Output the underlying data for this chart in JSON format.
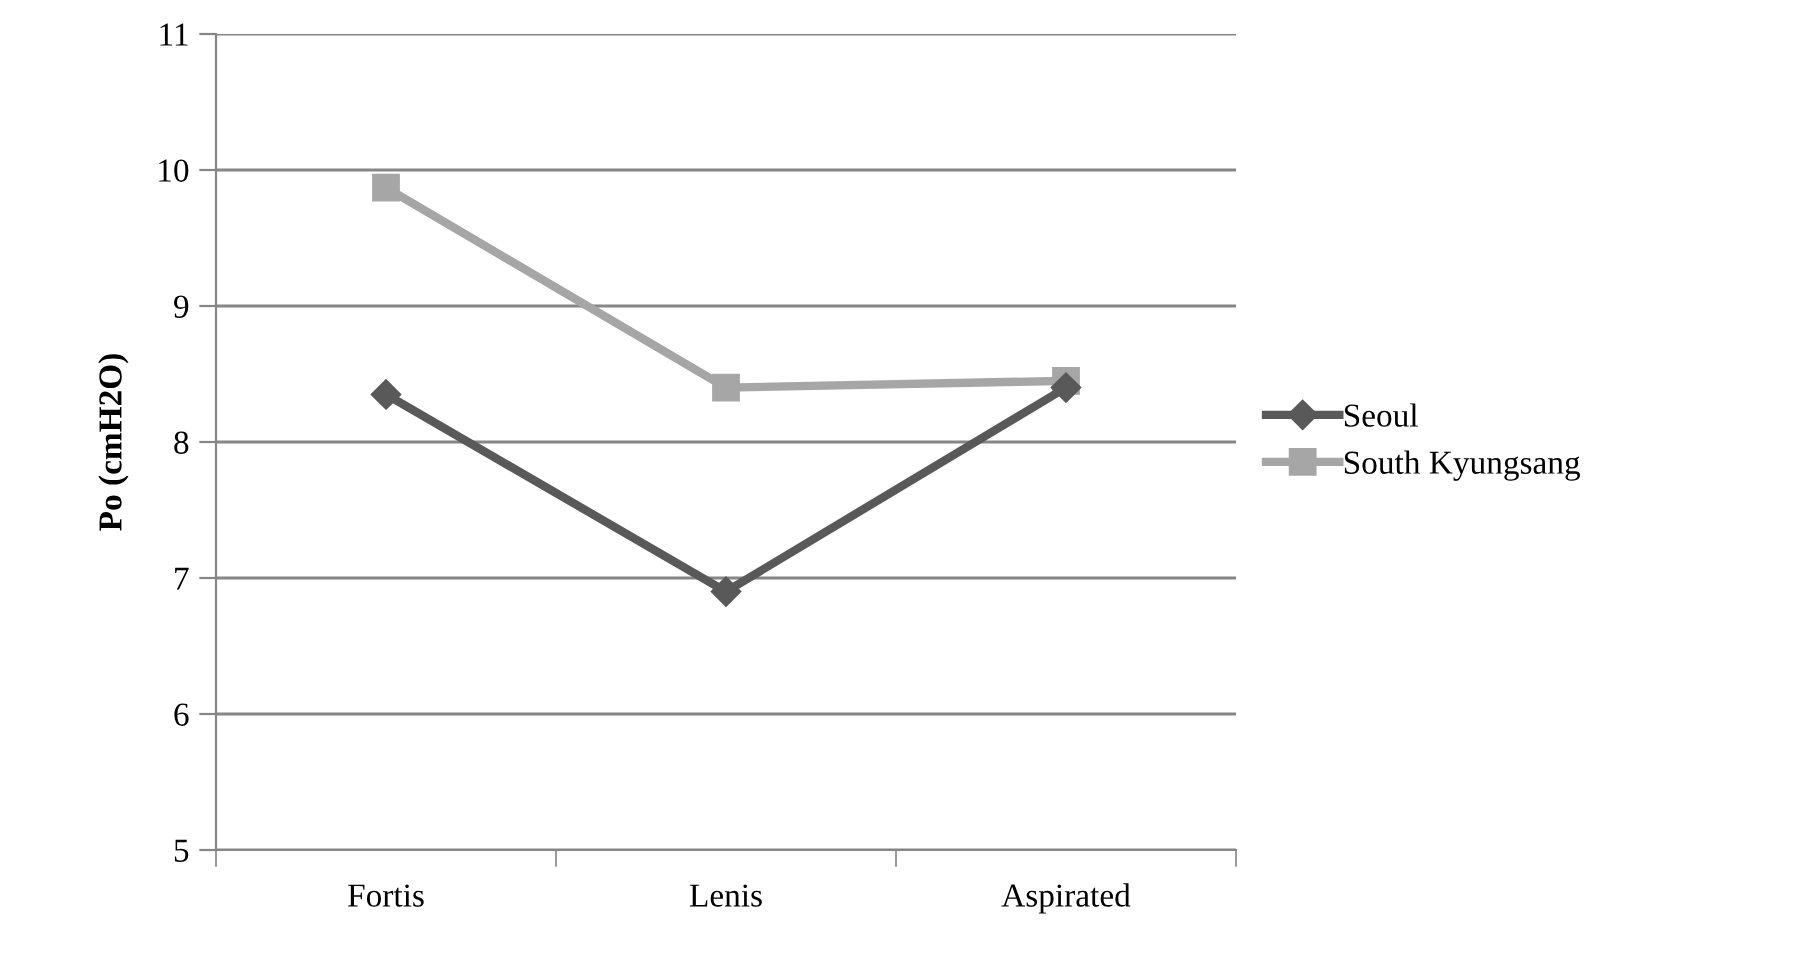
{
  "chart_data": {
    "type": "line",
    "ylabel": "Po (cmH2O)",
    "categories": [
      "Fortis",
      "Lenis",
      "Aspirated"
    ],
    "series": [
      {
        "name": "Seoul",
        "color": "#595959",
        "values": [
          8.35,
          6.9,
          8.4
        ],
        "marker": "diamond"
      },
      {
        "name": "South Kyungsang",
        "color": "#a6a6a6",
        "values": [
          9.87,
          8.4,
          8.45
        ],
        "marker": "square"
      }
    ],
    "ylim": [
      5,
      11
    ],
    "yticks": [
      5,
      6,
      7,
      8,
      9,
      10,
      11
    ],
    "grid": "y",
    "legend": "right",
    "line_style": "solid"
  }
}
